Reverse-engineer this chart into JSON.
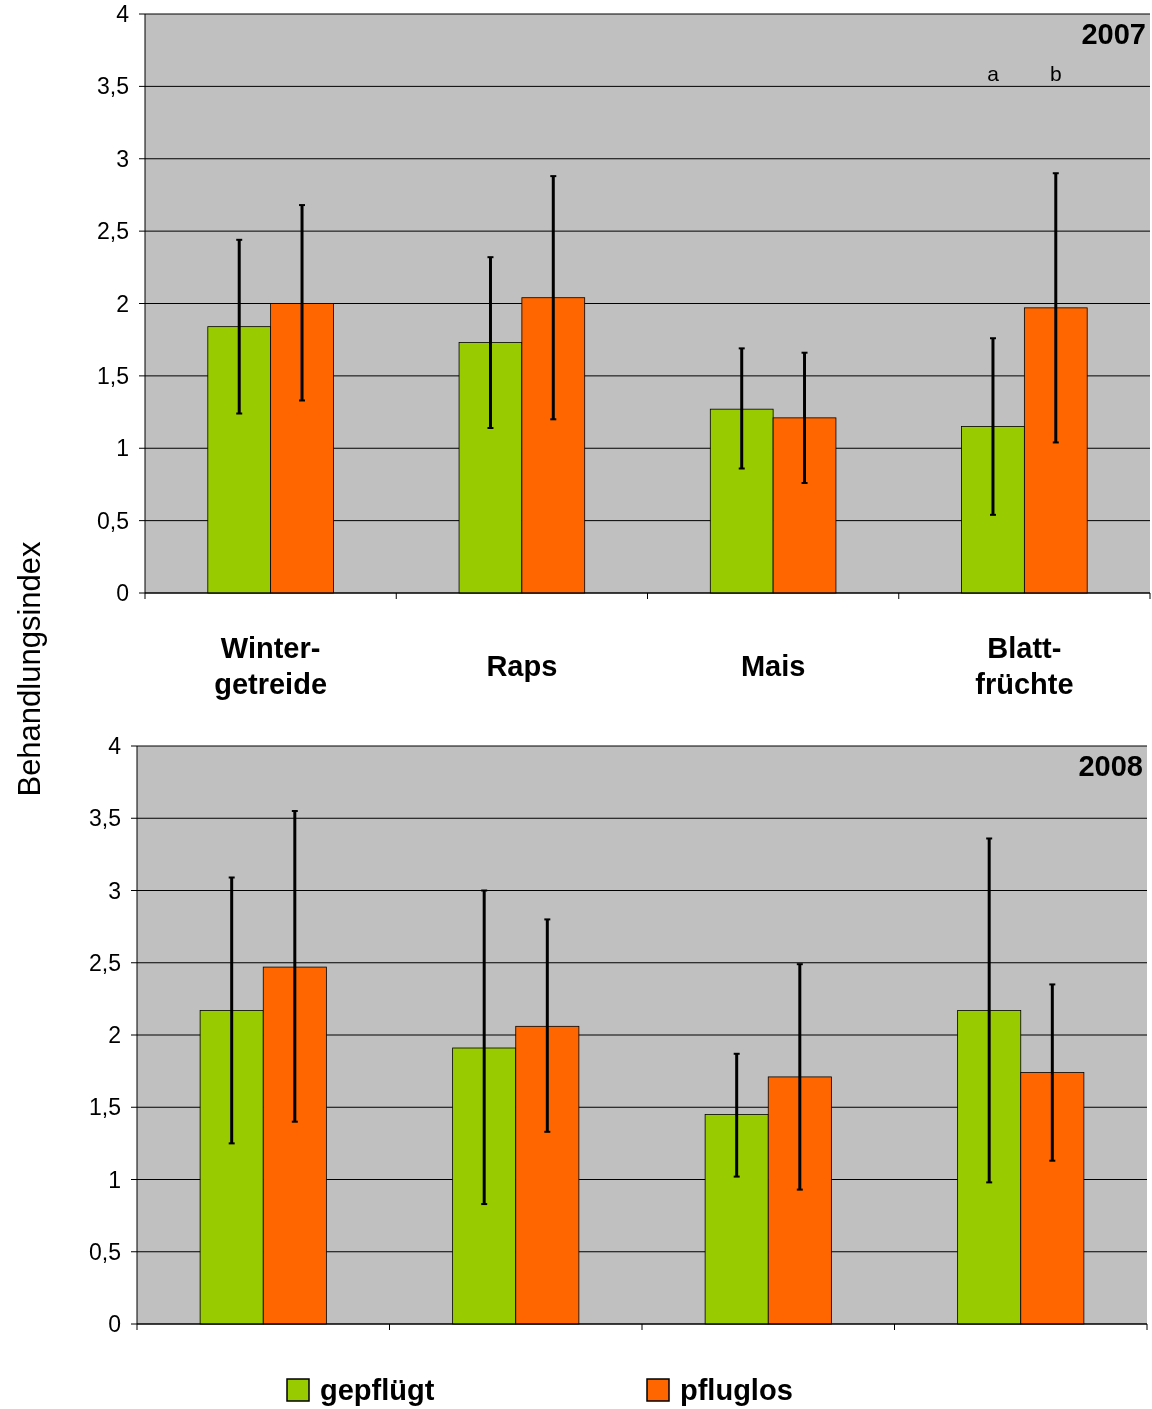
{
  "chart_data": [
    {
      "type": "bar",
      "title": "2007",
      "ylabel": "Behandlungsindex",
      "categories": [
        "Winter-getreide",
        "Raps",
        "Mais",
        "Blatt-früchte"
      ],
      "series": [
        {
          "color": "#99cc00",
          "values": [
            1.84,
            1.73,
            1.27,
            1.15
          ],
          "errors": [
            [
              1.24,
              2.44
            ],
            [
              1.14,
              2.32
            ],
            [
              0.86,
              1.69
            ],
            [
              0.54,
              1.76
            ]
          ]
        },
        {
          "color": "#ff6600",
          "values": [
            2.0,
            2.04,
            1.21,
            1.97
          ],
          "errors": [
            [
              1.33,
              2.68
            ],
            [
              1.2,
              2.88
            ],
            [
              0.76,
              1.66
            ],
            [
              1.04,
              2.9
            ]
          ]
        }
      ],
      "ylim": [
        0,
        4
      ],
      "yticks": [
        0,
        {
          "value": 0.5,
          "label": "0,5"
        },
        1,
        {
          "value": 1.5,
          "label": "1,5"
        },
        2,
        {
          "value": 2.5,
          "label": "2,5"
        },
        3,
        {
          "value": 3.5,
          "label": "3,5"
        },
        4
      ],
      "grid": "y",
      "annotations": [
        "a",
        "b"
      ]
    },
    {
      "type": "bar",
      "title": "2008",
      "categories": [
        null,
        null,
        null,
        null
      ],
      "series": [
        {
          "name": "gepflügt",
          "color": "#99cc00",
          "values": [
            2.17,
            1.91,
            1.45,
            2.17
          ],
          "errors": [
            [
              1.25,
              3.09
            ],
            [
              0.83,
              3.0
            ],
            [
              1.02,
              1.87
            ],
            [
              0.98,
              3.36
            ]
          ]
        },
        {
          "name": "pfluglos",
          "color": "#ff6600",
          "values": [
            2.47,
            2.06,
            1.71,
            1.74
          ],
          "errors": [
            [
              1.4,
              3.55
            ],
            [
              1.33,
              2.8
            ],
            [
              0.93,
              2.49
            ],
            [
              1.13,
              2.35
            ]
          ]
        }
      ],
      "ylim": [
        0,
        4
      ],
      "yticks": [
        0,
        {
          "value": 0.5,
          "label": "0,5"
        },
        1,
        {
          "value": 1.5,
          "label": "1,5"
        },
        2,
        {
          "value": 2.5,
          "label": "2,5"
        },
        3,
        {
          "value": 3.5,
          "label": "3,5"
        },
        4
      ],
      "grid": "y",
      "tick_labels": "y",
      "legend": "bottom"
    }
  ]
}
